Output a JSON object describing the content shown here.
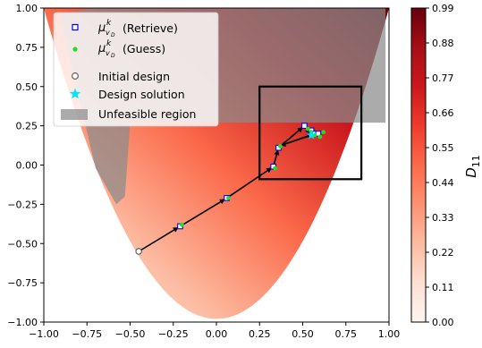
{
  "chart_data": {
    "type": "scatter",
    "xlim": [
      -1.0,
      1.0
    ],
    "ylim": [
      -1.0,
      1.0
    ],
    "xticks": [
      "−1.00",
      "−0.75",
      "−0.50",
      "−0.25",
      "0.00",
      "0.25",
      "0.50",
      "0.75",
      "1.00"
    ],
    "yticks": [
      "1.00",
      "0.75",
      "0.50",
      "0.25",
      "0.00",
      "−0.25",
      "−0.50",
      "−0.75",
      "−1.00"
    ],
    "xtick_values": [
      -1.0,
      -0.75,
      -0.5,
      -0.25,
      0.0,
      0.25,
      0.5,
      0.75,
      1.0
    ],
    "ytick_values": [
      1.0,
      0.75,
      0.5,
      0.25,
      0.0,
      -0.25,
      -0.5,
      -0.75,
      -1.0
    ],
    "grid": false,
    "legend_placement": "top-left",
    "legend": [
      {
        "key": "retrieve",
        "label": "(Retrieve)"
      },
      {
        "key": "guess",
        "label": "(Guess)"
      },
      {
        "key": "initial",
        "label": "Initial design"
      },
      {
        "key": "solution",
        "label": "Design solution"
      },
      {
        "key": "unfeasible",
        "label": "Unfeasible region"
      }
    ],
    "legend_math": {
      "symbol": "μ",
      "superscript": "k",
      "subscript": "v",
      "subsubscript": "D"
    },
    "colorbar": {
      "label": "D",
      "label_subscript": "11",
      "range": [
        0.0,
        0.99
      ],
      "ticks": [
        "0.99",
        "0.88",
        "0.77",
        "0.66",
        "0.55",
        "0.44",
        "0.33",
        "0.22",
        "0.11",
        "0.00"
      ],
      "tick_values": [
        0.99,
        0.88,
        0.77,
        0.66,
        0.55,
        0.44,
        0.33,
        0.22,
        0.11,
        0.0
      ],
      "colormap": "Reds"
    },
    "initial_design": {
      "x": -0.45,
      "y": -0.55
    },
    "design_solution": {
      "x": 0.55,
      "y": 0.19
    },
    "retrieve_points": [
      {
        "x": -0.21,
        "y": -0.39
      },
      {
        "x": 0.06,
        "y": -0.21
      },
      {
        "x": 0.33,
        "y": -0.01
      },
      {
        "x": 0.36,
        "y": 0.11
      },
      {
        "x": 0.51,
        "y": 0.25
      },
      {
        "x": 0.55,
        "y": 0.22
      },
      {
        "x": 0.57,
        "y": 0.2
      },
      {
        "x": 0.59,
        "y": 0.2
      }
    ],
    "guess_points": [
      {
        "x": -0.2,
        "y": -0.38
      },
      {
        "x": 0.07,
        "y": -0.21
      },
      {
        "x": 0.34,
        "y": -0.02
      },
      {
        "x": 0.37,
        "y": 0.12
      },
      {
        "x": 0.53,
        "y": 0.23
      },
      {
        "x": 0.55,
        "y": 0.21
      },
      {
        "x": 0.57,
        "y": 0.19
      },
      {
        "x": 0.6,
        "y": 0.18
      },
      {
        "x": 0.62,
        "y": 0.21
      }
    ],
    "path": [
      {
        "x": -0.45,
        "y": -0.55
      },
      {
        "x": -0.21,
        "y": -0.39
      },
      {
        "x": 0.06,
        "y": -0.21
      },
      {
        "x": 0.33,
        "y": -0.01
      },
      {
        "x": 0.36,
        "y": 0.11
      },
      {
        "x": 0.51,
        "y": 0.25
      },
      {
        "x": 0.55,
        "y": 0.19
      },
      {
        "x": 0.36,
        "y": 0.12
      },
      {
        "x": 0.57,
        "y": 0.2
      },
      {
        "x": 0.59,
        "y": 0.2
      }
    ],
    "feasible_parabola": {
      "vertex": [
        0.0,
        -0.98
      ],
      "a": 1.98
    },
    "unfeasible_region": [
      {
        "x": -0.91,
        "y": 0.96
      },
      {
        "x": -0.5,
        "y": 0.27
      },
      {
        "x": 0.98,
        "y": 0.27
      },
      {
        "x": 0.98,
        "y": 1.0
      },
      {
        "x": -0.72,
        "y": 1.0
      }
    ],
    "unfeasible_left_wedge": [
      {
        "x": -0.91,
        "y": 0.96
      },
      {
        "x": -0.5,
        "y": 0.27
      },
      {
        "x": -0.53,
        "y": -0.2
      },
      {
        "x": -0.58,
        "y": -0.25
      },
      {
        "x": -0.7,
        "y": -0.02
      }
    ],
    "zoom_box": {
      "x0": 0.25,
      "x1": 0.84,
      "y0": -0.09,
      "y1": 0.5
    },
    "colors": {
      "retrieve_edge": "#0000ff",
      "guess": "#22dd22",
      "initial_edge": "#555555",
      "solution": "#00e5ff",
      "unfeasible": "#8a8a8a",
      "path": "#000000"
    }
  }
}
